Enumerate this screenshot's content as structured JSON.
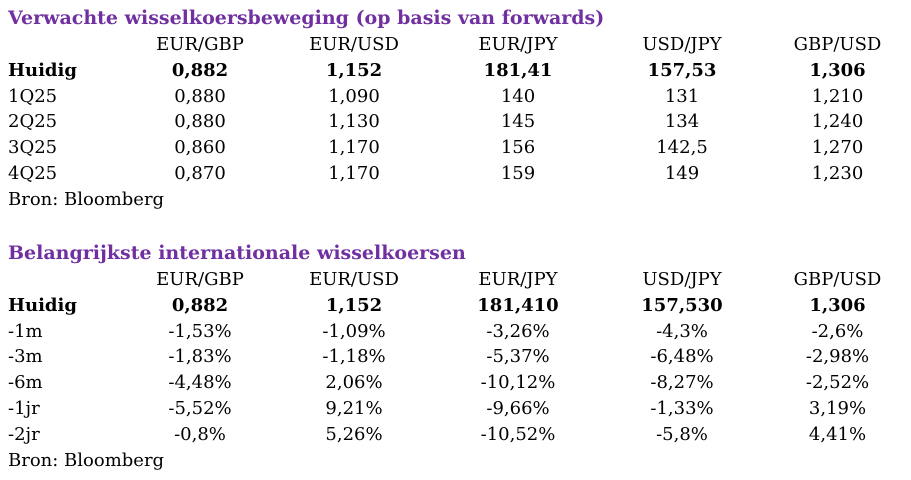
{
  "theme": {
    "title_color": "#7030A0"
  },
  "section1": {
    "title": "Verwachte wisselkoersbeweging (op basis van forwards)",
    "headers": [
      "EUR/GBP",
      "EUR/USD",
      "EUR/JPY",
      "USD/JPY",
      "GBP/USD"
    ],
    "rows": [
      {
        "label": "Huidig",
        "bold": true,
        "values": [
          "0,882",
          "1,152",
          "181,41",
          "157,53",
          "1,306"
        ]
      },
      {
        "label": "1Q25",
        "bold": false,
        "values": [
          "0,880",
          "1,090",
          "140",
          "131",
          "1,210"
        ]
      },
      {
        "label": "2Q25",
        "bold": false,
        "values": [
          "0,880",
          "1,130",
          "145",
          "134",
          "1,240"
        ]
      },
      {
        "label": "3Q25",
        "bold": false,
        "values": [
          "0,860",
          "1,170",
          "156",
          "142,5",
          "1,270"
        ]
      },
      {
        "label": "4Q25",
        "bold": false,
        "values": [
          "0,870",
          "1,170",
          "159",
          "149",
          "1,230"
        ]
      }
    ],
    "source": "Bron: Bloomberg"
  },
  "section2": {
    "title": "Belangrijkste internationale wisselkoersen",
    "headers": [
      "EUR/GBP",
      "EUR/USD",
      "EUR/JPY",
      "USD/JPY",
      "GBP/USD"
    ],
    "rows": [
      {
        "label": "Huidig",
        "bold": true,
        "values": [
          "0,882",
          "1,152",
          "181,410",
          "157,530",
          "1,306"
        ]
      },
      {
        "label": "-1m",
        "bold": false,
        "values": [
          "-1,53%",
          "-1,09%",
          "-3,26%",
          "-4,3%",
          "-2,6%"
        ]
      },
      {
        "label": "-3m",
        "bold": false,
        "values": [
          "-1,83%",
          "-1,18%",
          "-5,37%",
          "-6,48%",
          "-2,98%"
        ]
      },
      {
        "label": "-6m",
        "bold": false,
        "values": [
          "-4,48%",
          "2,06%",
          "-10,12%",
          "-8,27%",
          "-2,52%"
        ]
      },
      {
        "label": "-1jr",
        "bold": false,
        "values": [
          "-5,52%",
          "9,21%",
          "-9,66%",
          "-1,33%",
          "3,19%"
        ]
      },
      {
        "label": "-2jr",
        "bold": false,
        "values": [
          "-0,8%",
          "5,26%",
          "-10,52%",
          "-5,8%",
          "4,41%"
        ]
      }
    ],
    "source": "Bron: Bloomberg"
  }
}
